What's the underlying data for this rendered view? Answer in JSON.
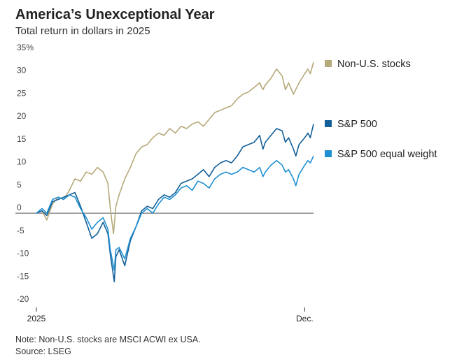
{
  "header": {
    "title": "America’s Unexceptional Year",
    "subtitle": "Total return in dollars in 2025"
  },
  "footer": {
    "note": "Note: Non-U.S. stocks are MSCI ACWI ex USA.",
    "source": "Source: LSEG"
  },
  "chart_data": {
    "type": "line",
    "title": "America’s Unexceptional Year",
    "subtitle": "Total return in dollars in 2025",
    "ylabel": "",
    "xlabel": "",
    "y_unit": "%",
    "ylim": [
      -20,
      35
    ],
    "y_ticks": [
      {
        "value": 35,
        "label": "35%"
      },
      {
        "value": 30,
        "label": "30"
      },
      {
        "value": 25,
        "label": "25"
      },
      {
        "value": 20,
        "label": "20"
      },
      {
        "value": 15,
        "label": "15"
      },
      {
        "value": 10,
        "label": "10"
      },
      {
        "value": 5,
        "label": "5"
      },
      {
        "value": 0,
        "label": "0"
      },
      {
        "value": -5,
        "label": "-5"
      },
      {
        "value": -10,
        "label": "-10"
      },
      {
        "value": -15,
        "label": "-15"
      },
      {
        "value": -20,
        "label": "-20"
      }
    ],
    "x_ticks": [
      {
        "x": "2025-01-01",
        "label": "2025"
      },
      {
        "x": "2025-12-01",
        "label": "Dec."
      }
    ],
    "xlim": [
      "2025-01-01",
      "2025-12-12"
    ],
    "grid": false,
    "zero_line": true,
    "legend_placement": "right",
    "series": [
      {
        "name": "Non-U.S. stocks",
        "color": "#b6a97a",
        "points": [
          [
            "2025-01-01",
            0.0
          ],
          [
            "2025-01-08",
            0.5
          ],
          [
            "2025-01-14",
            -1.5
          ],
          [
            "2025-01-21",
            2.0
          ],
          [
            "2025-01-28",
            3.5
          ],
          [
            "2025-02-04",
            3.0
          ],
          [
            "2025-02-11",
            5.0
          ],
          [
            "2025-02-18",
            7.5
          ],
          [
            "2025-02-25",
            7.0
          ],
          [
            "2025-03-04",
            9.0
          ],
          [
            "2025-03-11",
            8.5
          ],
          [
            "2025-03-18",
            10.0
          ],
          [
            "2025-03-25",
            9.0
          ],
          [
            "2025-03-31",
            6.5
          ],
          [
            "2025-04-03",
            1.0
          ],
          [
            "2025-04-07",
            -4.5
          ],
          [
            "2025-04-10",
            1.5
          ],
          [
            "2025-04-14",
            4.0
          ],
          [
            "2025-04-21",
            7.5
          ],
          [
            "2025-04-28",
            10.0
          ],
          [
            "2025-05-05",
            13.0
          ],
          [
            "2025-05-12",
            14.5
          ],
          [
            "2025-05-19",
            15.0
          ],
          [
            "2025-05-26",
            16.5
          ],
          [
            "2025-06-02",
            17.5
          ],
          [
            "2025-06-09",
            17.0
          ],
          [
            "2025-06-16",
            18.5
          ],
          [
            "2025-06-23",
            17.5
          ],
          [
            "2025-06-30",
            19.0
          ],
          [
            "2025-07-07",
            18.5
          ],
          [
            "2025-07-14",
            19.5
          ],
          [
            "2025-07-21",
            20.0
          ],
          [
            "2025-07-28",
            19.0
          ],
          [
            "2025-08-04",
            20.5
          ],
          [
            "2025-08-11",
            22.0
          ],
          [
            "2025-08-18",
            22.5
          ],
          [
            "2025-08-25",
            23.0
          ],
          [
            "2025-09-01",
            23.5
          ],
          [
            "2025-09-08",
            25.0
          ],
          [
            "2025-09-15",
            26.0
          ],
          [
            "2025-09-22",
            26.5
          ],
          [
            "2025-09-29",
            27.5
          ],
          [
            "2025-10-06",
            28.5
          ],
          [
            "2025-10-10",
            27.0
          ],
          [
            "2025-10-13",
            28.0
          ],
          [
            "2025-10-20",
            29.5
          ],
          [
            "2025-10-27",
            31.5
          ],
          [
            "2025-11-03",
            30.0
          ],
          [
            "2025-11-07",
            27.0
          ],
          [
            "2025-11-11",
            28.5
          ],
          [
            "2025-11-17",
            26.0
          ],
          [
            "2025-11-24",
            28.5
          ],
          [
            "2025-12-01",
            30.5
          ],
          [
            "2025-12-05",
            31.5
          ],
          [
            "2025-12-08",
            30.5
          ],
          [
            "2025-12-12",
            33.0
          ]
        ]
      },
      {
        "name": "S&P 500",
        "color": "#135f98",
        "points": [
          [
            "2025-01-01",
            0.0
          ],
          [
            "2025-01-08",
            0.5
          ],
          [
            "2025-01-14",
            -0.5
          ],
          [
            "2025-01-21",
            2.5
          ],
          [
            "2025-01-28",
            3.0
          ],
          [
            "2025-02-04",
            3.5
          ],
          [
            "2025-02-11",
            4.0
          ],
          [
            "2025-02-18",
            4.5
          ],
          [
            "2025-02-25",
            1.5
          ],
          [
            "2025-03-04",
            -2.0
          ],
          [
            "2025-03-11",
            -5.5
          ],
          [
            "2025-03-18",
            -4.5
          ],
          [
            "2025-03-25",
            -2.0
          ],
          [
            "2025-03-31",
            -4.5
          ],
          [
            "2025-04-03",
            -9.0
          ],
          [
            "2025-04-08",
            -15.0
          ],
          [
            "2025-04-10",
            -9.5
          ],
          [
            "2025-04-14",
            -8.0
          ],
          [
            "2025-04-21",
            -11.5
          ],
          [
            "2025-04-28",
            -6.0
          ],
          [
            "2025-05-05",
            -3.0
          ],
          [
            "2025-05-12",
            0.5
          ],
          [
            "2025-05-19",
            1.5
          ],
          [
            "2025-05-26",
            1.0
          ],
          [
            "2025-06-02",
            3.0
          ],
          [
            "2025-06-09",
            4.0
          ],
          [
            "2025-06-16",
            3.5
          ],
          [
            "2025-06-23",
            4.5
          ],
          [
            "2025-06-30",
            6.5
          ],
          [
            "2025-07-07",
            7.0
          ],
          [
            "2025-07-14",
            7.5
          ],
          [
            "2025-07-21",
            8.5
          ],
          [
            "2025-07-28",
            9.5
          ],
          [
            "2025-08-04",
            8.0
          ],
          [
            "2025-08-11",
            10.0
          ],
          [
            "2025-08-18",
            11.0
          ],
          [
            "2025-08-25",
            11.5
          ],
          [
            "2025-09-01",
            11.0
          ],
          [
            "2025-09-08",
            12.5
          ],
          [
            "2025-09-15",
            14.5
          ],
          [
            "2025-09-22",
            15.0
          ],
          [
            "2025-09-29",
            15.5
          ],
          [
            "2025-10-06",
            17.0
          ],
          [
            "2025-10-10",
            14.0
          ],
          [
            "2025-10-13",
            15.5
          ],
          [
            "2025-10-20",
            17.0
          ],
          [
            "2025-10-27",
            18.5
          ],
          [
            "2025-11-03",
            18.0
          ],
          [
            "2025-11-07",
            15.5
          ],
          [
            "2025-11-11",
            16.5
          ],
          [
            "2025-11-17",
            14.0
          ],
          [
            "2025-11-20",
            12.5
          ],
          [
            "2025-11-24",
            15.0
          ],
          [
            "2025-12-01",
            16.5
          ],
          [
            "2025-12-05",
            17.5
          ],
          [
            "2025-12-08",
            16.5
          ],
          [
            "2025-12-12",
            19.5
          ]
        ]
      },
      {
        "name": "S&P 500 equal weight",
        "color": "#1f90d2",
        "points": [
          [
            "2025-01-01",
            0.0
          ],
          [
            "2025-01-08",
            1.0
          ],
          [
            "2025-01-14",
            0.0
          ],
          [
            "2025-01-21",
            3.0
          ],
          [
            "2025-01-28",
            3.5
          ],
          [
            "2025-02-04",
            3.0
          ],
          [
            "2025-02-11",
            4.0
          ],
          [
            "2025-02-18",
            3.5
          ],
          [
            "2025-02-25",
            1.0
          ],
          [
            "2025-03-04",
            -1.0
          ],
          [
            "2025-03-11",
            -3.5
          ],
          [
            "2025-03-18",
            -2.0
          ],
          [
            "2025-03-25",
            -1.0
          ],
          [
            "2025-03-31",
            -3.5
          ],
          [
            "2025-04-03",
            -8.0
          ],
          [
            "2025-04-08",
            -12.5
          ],
          [
            "2025-04-10",
            -8.0
          ],
          [
            "2025-04-14",
            -7.5
          ],
          [
            "2025-04-21",
            -10.0
          ],
          [
            "2025-04-28",
            -5.5
          ],
          [
            "2025-05-05",
            -3.0
          ],
          [
            "2025-05-12",
            0.0
          ],
          [
            "2025-05-19",
            1.0
          ],
          [
            "2025-05-26",
            0.0
          ],
          [
            "2025-06-02",
            2.0
          ],
          [
            "2025-06-09",
            3.5
          ],
          [
            "2025-06-16",
            3.0
          ],
          [
            "2025-06-23",
            4.0
          ],
          [
            "2025-06-30",
            5.5
          ],
          [
            "2025-07-07",
            6.0
          ],
          [
            "2025-07-14",
            5.0
          ],
          [
            "2025-07-21",
            7.0
          ],
          [
            "2025-07-28",
            6.5
          ],
          [
            "2025-08-04",
            5.5
          ],
          [
            "2025-08-11",
            7.5
          ],
          [
            "2025-08-18",
            8.5
          ],
          [
            "2025-08-25",
            9.0
          ],
          [
            "2025-09-01",
            8.5
          ],
          [
            "2025-09-08",
            9.0
          ],
          [
            "2025-09-15",
            10.0
          ],
          [
            "2025-09-22",
            9.5
          ],
          [
            "2025-09-29",
            9.0
          ],
          [
            "2025-10-06",
            10.0
          ],
          [
            "2025-10-10",
            8.0
          ],
          [
            "2025-10-13",
            9.0
          ],
          [
            "2025-10-20",
            10.5
          ],
          [
            "2025-10-27",
            11.5
          ],
          [
            "2025-11-03",
            10.5
          ],
          [
            "2025-11-07",
            9.0
          ],
          [
            "2025-11-11",
            9.5
          ],
          [
            "2025-11-17",
            7.5
          ],
          [
            "2025-11-20",
            6.0
          ],
          [
            "2025-11-24",
            8.5
          ],
          [
            "2025-12-01",
            10.5
          ],
          [
            "2025-12-05",
            11.5
          ],
          [
            "2025-12-08",
            11.0
          ],
          [
            "2025-12-12",
            12.5
          ]
        ]
      }
    ]
  }
}
